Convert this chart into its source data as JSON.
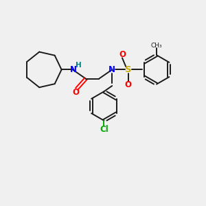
{
  "background_color": "#f0f0f0",
  "bond_color": "#1a1a1a",
  "N_color": "#0000ff",
  "H_color": "#008080",
  "O_color": "#ff0000",
  "S_color": "#ccaa00",
  "Cl_color": "#00aa00",
  "figsize": [
    3.0,
    3.0
  ],
  "dpi": 100,
  "xlim": [
    0,
    10
  ],
  "ylim": [
    0,
    10
  ]
}
